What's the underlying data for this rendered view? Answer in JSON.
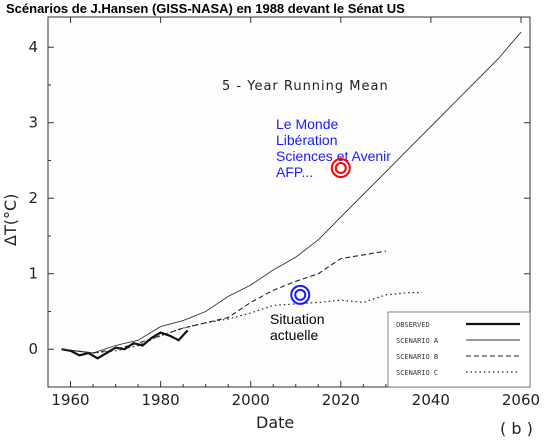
{
  "page_title": "Scénarios de J.Hansen (GISS-NASA) en 1988 devant le Sénat US",
  "chart_data": {
    "type": "line",
    "inner_label": "5 - Year  Running  Mean",
    "xlabel": "Date",
    "ylabel": "ΔT(°C)",
    "panel_tag": "( b )",
    "xlim": [
      1955,
      2062
    ],
    "ylim": [
      -0.5,
      4.4
    ],
    "x_ticks": [
      1960,
      1980,
      2000,
      2020,
      2040,
      2060
    ],
    "y_ticks": [
      0,
      1,
      2,
      3,
      4
    ],
    "grid": false,
    "legend_position": "bottom-right",
    "series": [
      {
        "name": "OBSERVED",
        "style": "solid-thick",
        "x": [
          1958,
          1960,
          1962,
          1964,
          1966,
          1968,
          1970,
          1972,
          1974,
          1976,
          1978,
          1980,
          1982,
          1984,
          1986
        ],
        "y": [
          0.0,
          -0.02,
          -0.08,
          -0.05,
          -0.12,
          -0.05,
          0.02,
          0.0,
          0.08,
          0.05,
          0.15,
          0.22,
          0.18,
          0.12,
          0.25
        ]
      },
      {
        "name": "SCENARIO A",
        "style": "solid-thin",
        "x": [
          1958,
          1965,
          1970,
          1975,
          1980,
          1985,
          1990,
          1995,
          2000,
          2005,
          2010,
          2015,
          2020,
          2025,
          2030,
          2035,
          2040,
          2045,
          2050,
          2055,
          2060
        ],
        "y": [
          0.0,
          -0.05,
          0.05,
          0.12,
          0.3,
          0.38,
          0.5,
          0.7,
          0.85,
          1.05,
          1.22,
          1.45,
          1.75,
          2.05,
          2.35,
          2.65,
          2.95,
          3.25,
          3.55,
          3.85,
          4.2
        ]
      },
      {
        "name": "SCENARIO B",
        "style": "dashed",
        "x": [
          1958,
          1965,
          1970,
          1975,
          1980,
          1985,
          1990,
          1995,
          2000,
          2005,
          2010,
          2015,
          2020,
          2025,
          2030
        ],
        "y": [
          0.0,
          -0.05,
          0.0,
          0.08,
          0.18,
          0.28,
          0.35,
          0.42,
          0.62,
          0.78,
          0.9,
          1.0,
          1.2,
          1.25,
          1.3
        ]
      },
      {
        "name": "SCENARIO C",
        "style": "dotted",
        "x": [
          1958,
          1965,
          1970,
          1975,
          1980,
          1985,
          1990,
          1995,
          2000,
          2005,
          2010,
          2015,
          2020,
          2025,
          2030,
          2035,
          2038
        ],
        "y": [
          0.0,
          -0.05,
          -0.02,
          0.05,
          0.18,
          0.28,
          0.35,
          0.4,
          0.48,
          0.58,
          0.6,
          0.62,
          0.65,
          0.62,
          0.72,
          0.75,
          0.75
        ]
      }
    ],
    "annotations": {
      "press": {
        "lines": [
          "Le Monde",
          "Libération",
          "Sciences et Avenir",
          "AFP..."
        ],
        "marker_x": 2020,
        "marker_y": 2.4,
        "color": "#ff0000",
        "text_color": "#1a1aff"
      },
      "situation": {
        "lines": [
          "Situation",
          "actuelle"
        ],
        "marker_x": 2011,
        "marker_y": 0.72,
        "color": "#1a1aff",
        "text_color": "#000000"
      }
    }
  }
}
